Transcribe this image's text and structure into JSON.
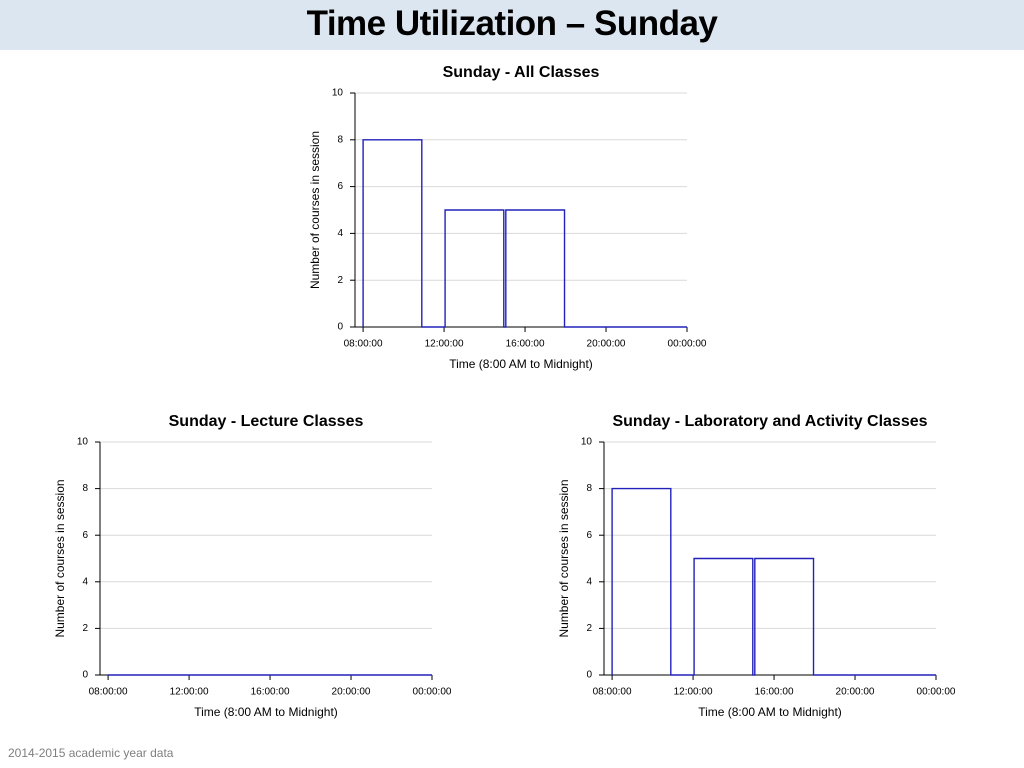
{
  "header": {
    "title": "Time Utilization – Sunday"
  },
  "footer": {
    "text": "2014-2015 academic year data"
  },
  "chart_data": [
    {
      "type": "line",
      "title": "Sunday - All Classes",
      "xlabel": "Time (8:00 AM to Midnight)",
      "ylabel": "Number of courses in session",
      "x": [
        8,
        8,
        10.9,
        10.9,
        12.05,
        12.05,
        14.95,
        14.95,
        15.05,
        15.05,
        17.95,
        17.95,
        24
      ],
      "values": [
        0,
        8,
        8,
        0,
        0,
        5,
        5,
        0,
        0,
        5,
        5,
        0,
        0
      ],
      "color": "#2222bb",
      "xlim": [
        7.6,
        24
      ],
      "ylim": [
        0,
        10
      ],
      "xticks": [
        {
          "value": 8,
          "label": "08:00:00"
        },
        {
          "value": 12,
          "label": "12:00:00"
        },
        {
          "value": 16,
          "label": "16:00:00"
        },
        {
          "value": 20,
          "label": "20:00:00"
        },
        {
          "value": 24,
          "label": "00:00:00"
        }
      ],
      "yticks": [
        0,
        2,
        4,
        6,
        8,
        10
      ],
      "grid": true
    },
    {
      "type": "line",
      "title": "Sunday - Lecture Classes",
      "xlabel": "Time (8:00 AM to Midnight)",
      "ylabel": "Number of courses in session",
      "x": [
        8,
        24
      ],
      "values": [
        0,
        0
      ],
      "color": "#2222bb",
      "xlim": [
        7.6,
        24
      ],
      "ylim": [
        0,
        10
      ],
      "xticks": [
        {
          "value": 8,
          "label": "08:00:00"
        },
        {
          "value": 12,
          "label": "12:00:00"
        },
        {
          "value": 16,
          "label": "16:00:00"
        },
        {
          "value": 20,
          "label": "20:00:00"
        },
        {
          "value": 24,
          "label": "00:00:00"
        }
      ],
      "yticks": [
        0,
        2,
        4,
        6,
        8,
        10
      ],
      "grid": true
    },
    {
      "type": "line",
      "title": "Sunday - Laboratory and Activity Classes",
      "xlabel": "Time (8:00 AM to Midnight)",
      "ylabel": "Number of courses in session",
      "x": [
        8,
        8,
        10.9,
        10.9,
        12.05,
        12.05,
        14.95,
        14.95,
        15.05,
        15.05,
        17.95,
        17.95,
        24
      ],
      "values": [
        0,
        8,
        8,
        0,
        0,
        5,
        5,
        0,
        0,
        5,
        5,
        0,
        0
      ],
      "color": "#2222bb",
      "xlim": [
        7.6,
        24
      ],
      "ylim": [
        0,
        10
      ],
      "xticks": [
        {
          "value": 8,
          "label": "08:00:00"
        },
        {
          "value": 12,
          "label": "12:00:00"
        },
        {
          "value": 16,
          "label": "16:00:00"
        },
        {
          "value": 20,
          "label": "20:00:00"
        },
        {
          "value": 24,
          "label": "00:00:00"
        }
      ],
      "yticks": [
        0,
        2,
        4,
        6,
        8,
        10
      ],
      "grid": true
    }
  ]
}
